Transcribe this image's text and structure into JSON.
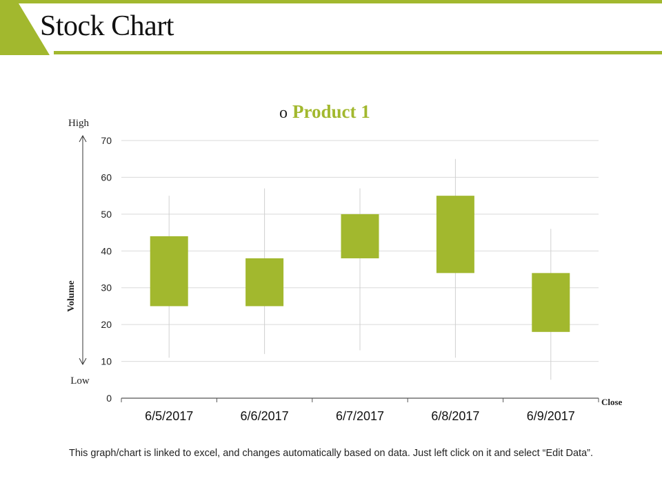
{
  "page": {
    "title": "Stock Chart",
    "footer_note": "This graph/chart is linked to excel, and changes automatically based on data. Just left click on it and select “Edit Data”."
  },
  "colors": {
    "accent": "#A2B82E",
    "grid": "#D9D9D9",
    "axis": "#555555",
    "wick": "#D0D0D0",
    "text": "#222222"
  },
  "chart_data": {
    "type": "candlestick",
    "title": "Product 1",
    "legend_marker": "o",
    "categories": [
      "6/5/2017",
      "6/6/2017",
      "6/7/2017",
      "6/8/2017",
      "6/9/2017"
    ],
    "series": [
      {
        "name": "Product 1",
        "open": [
          25,
          25,
          38,
          34,
          34
        ],
        "high": [
          55,
          57,
          57,
          65,
          46
        ],
        "low": [
          11,
          12,
          13,
          11,
          5
        ],
        "close": [
          44,
          38,
          50,
          55,
          18
        ]
      }
    ],
    "ylim": [
      0,
      70
    ],
    "yticks": [
      0,
      10,
      20,
      30,
      40,
      50,
      60,
      70
    ],
    "ylabel": "Volume",
    "ylabel_top": "High",
    "ylabel_bottom": "Low",
    "xlabel": "Close",
    "grid": true
  }
}
